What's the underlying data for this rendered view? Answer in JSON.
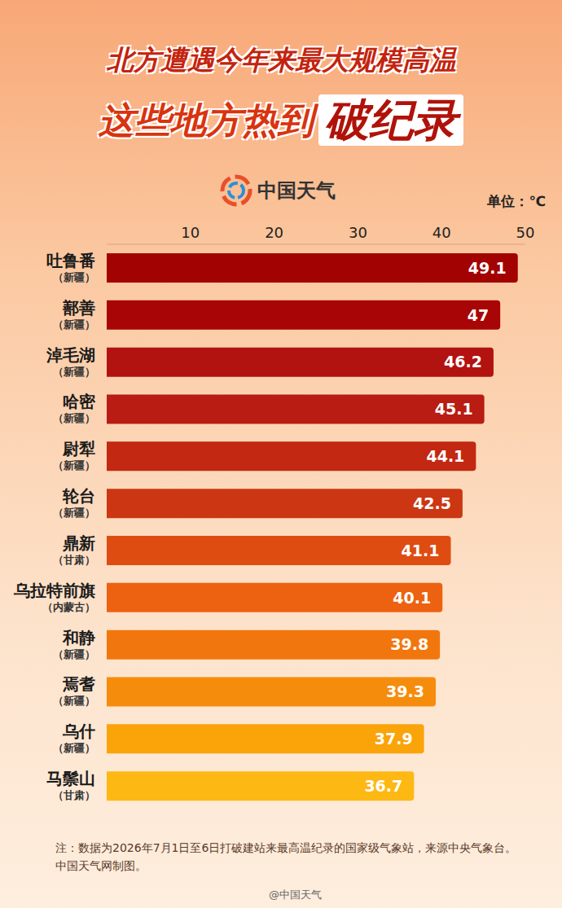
{
  "chart_data": {
    "type": "bar",
    "orientation": "horizontal",
    "title": "北方遭遇今年来最大规模高温",
    "subtitle": "这些地方热到",
    "subtitle_highlight": "破纪录",
    "logo": "中国天气",
    "unit_label": "单位：℃",
    "categories": [
      "吐鲁番（新疆）",
      "鄯善（新疆）",
      "淖毛湖（新疆）",
      "哈密（新疆）",
      "尉犁（新疆）",
      "轮台（新疆）",
      "鼎新（甘肃）",
      "乌拉特前旗（内蒙古）",
      "和静（新疆）",
      "焉耆（新疆）",
      "乌什（新疆）",
      "马鬃山（甘肃）"
    ],
    "values": [
      49.1,
      47,
      46.2,
      45.1,
      44.1,
      42.5,
      41.1,
      40.1,
      39.8,
      39.3,
      37.9,
      36.7
    ],
    "colors": [
      "#a30202",
      "#a80606",
      "#b21210",
      "#b81c12",
      "#c22812",
      "#cc3612",
      "#df4c12",
      "#ec6210",
      "#f2760e",
      "#f68c0c",
      "#faa40a",
      "#fdb813"
    ],
    "xlim": [
      0,
      50
    ],
    "xticks": [
      10,
      20,
      30,
      40,
      50
    ],
    "grid": false,
    "data_labels": true,
    "note": "注：数据为2026年7月1日至6日打破建站来最高温纪录的国家级气象站，来源中央气象台。中国天气网制图。",
    "watermark": "@中国天气"
  }
}
